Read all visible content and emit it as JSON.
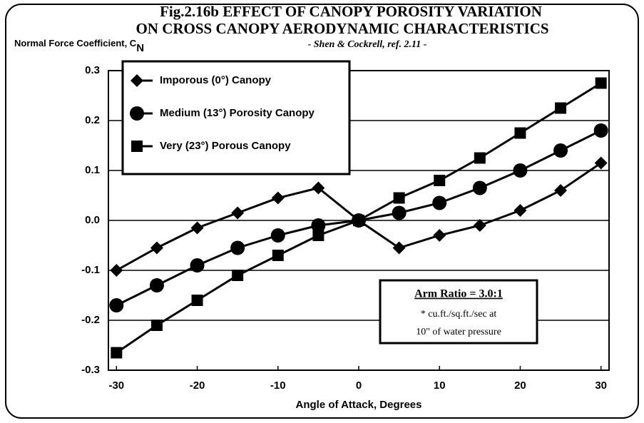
{
  "chart_data": {
    "type": "line",
    "title": "Fig.2.16b   EFFECT OF CANOPY POROSITY VARIATION",
    "title_line2": "ON CROSS CANOPY AERODYNAMIC CHARACTERISTICS",
    "subtitle": "- Shen & Cockrell, ref. 2.11 -",
    "y_label": "Normal Force Coefficient, C",
    "y_label_subscript": "N",
    "x_label": "Angle of Attack, Degrees",
    "x": [
      -30,
      -25,
      -20,
      -15,
      -10,
      -5,
      0,
      5,
      10,
      15,
      20,
      25,
      30
    ],
    "series": [
      {
        "name": "Imporous (0°) Canopy",
        "color": "#000000",
        "marker": "diamond",
        "values": [
          -0.1,
          -0.055,
          -0.015,
          0.015,
          0.045,
          0.065,
          0,
          -0.055,
          -0.03,
          -0.01,
          0.02,
          0.06,
          0.115
        ]
      },
      {
        "name": "Medium (13°) Porosity Canopy",
        "color": "#000000",
        "marker": "circle",
        "values": [
          -0.17,
          -0.13,
          -0.09,
          -0.055,
          -0.03,
          -0.01,
          0,
          0.015,
          0.035,
          0.065,
          0.1,
          0.14,
          0.18
        ]
      },
      {
        "name": "Very (23°) Porous Canopy",
        "color": "#000000",
        "marker": "square",
        "values": [
          -0.265,
          -0.21,
          -0.16,
          -0.11,
          -0.07,
          -0.03,
          0,
          0.045,
          0.08,
          0.125,
          0.175,
          0.225,
          0.275
        ]
      }
    ],
    "xlim": [
      -31,
      31
    ],
    "ylim": [
      -0.3,
      0.3
    ],
    "xticks": [
      -30,
      -20,
      -10,
      0,
      10,
      20,
      30
    ],
    "yticks": [
      0.3,
      0.2,
      0.1,
      {
        "value": 0,
        "label": "0.0"
      },
      -0.1,
      -0.2,
      -0.3
    ],
    "grid": true,
    "annotation": {
      "title": "Arm Ratio = 3.0:1",
      "lines": [
        "* cu.ft./sq.ft./sec at",
        "10\" of water pressure"
      ]
    }
  }
}
